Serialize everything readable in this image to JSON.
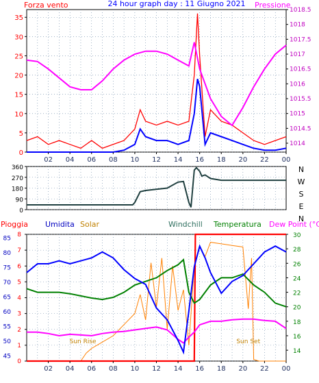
{
  "header": {
    "left_label": "Forza vento",
    "title": "24 hour graph day : 11 Giugno 2021",
    "right_label": "Pressione"
  },
  "bottom_header": {
    "pioggia": "Pioggia",
    "umidita": "Umidita",
    "solar": "Solar",
    "windchill": "Windchill",
    "temperatura": "Temperatura",
    "dewpoint": "Dew Point (°C)"
  },
  "annotations": {
    "sunrise": "Sun Rise",
    "sunset": "Sun Set"
  },
  "colors": {
    "wind": "#ff0000",
    "gust_avg": "#0000ff",
    "pressure": "#ff00ff",
    "direction": "#1f3f3f",
    "rain": "#ff0000",
    "humidity": "#0000ff",
    "solar": "#ff8000",
    "temperature": "#008000",
    "dewpoint": "#ff00ff",
    "pioggia_axis": "#ff0000",
    "umidita_axis": "#0000c0",
    "temp_axis": "#008000"
  },
  "chart_data": [
    {
      "type": "line",
      "name": "wind_pressure",
      "x_ticks": [
        "02",
        "04",
        "06",
        "08",
        "10",
        "12",
        "14",
        "16",
        "18",
        "20",
        "22",
        "00"
      ],
      "y_left_ticks": [
        "35",
        "30",
        "25",
        "20",
        "15",
        "10",
        "5",
        "0"
      ],
      "y_left_lim": [
        0,
        37
      ],
      "y_right_ticks": [
        "1018.5",
        "1018",
        "1017.5",
        "1017",
        "1016.5",
        "1016",
        "1015.5",
        "1015",
        "1014.5",
        "1014"
      ],
      "y_right_lim": [
        1013.7,
        1018.5
      ],
      "xlim": [
        0,
        24
      ],
      "series": [
        {
          "name": "Pressione",
          "x": [
            0,
            1,
            2,
            3,
            4,
            5,
            6,
            7,
            8,
            9,
            10,
            11,
            12,
            13,
            14,
            15,
            15.5,
            16,
            17,
            18,
            19,
            20,
            21,
            22,
            23,
            24
          ],
          "values": [
            1016.8,
            1016.75,
            1016.5,
            1016.2,
            1015.9,
            1015.8,
            1015.8,
            1016.1,
            1016.5,
            1016.8,
            1017.0,
            1017.1,
            1017.1,
            1017.0,
            1016.8,
            1016.6,
            1017.4,
            1016.5,
            1015.5,
            1014.9,
            1014.6,
            1015.2,
            1015.9,
            1016.5,
            1017.0,
            1017.3
          ]
        },
        {
          "name": "wind_avg",
          "x": [
            0,
            2,
            4,
            6,
            8,
            9,
            10,
            10.5,
            11,
            12,
            13,
            14,
            15,
            15.5,
            15.8,
            16,
            16.5,
            17,
            18,
            19,
            20,
            21,
            22,
            23,
            24
          ],
          "values": [
            0,
            0,
            0,
            0,
            0,
            0.5,
            2,
            6,
            4,
            3,
            3,
            2,
            3,
            10,
            19,
            17,
            2,
            5,
            4,
            3,
            2,
            1,
            0.5,
            0.5,
            1
          ]
        },
        {
          "name": "wind_gust",
          "x": [
            0,
            1,
            2,
            3,
            4,
            5,
            6,
            7,
            8,
            9,
            10,
            10.5,
            11,
            12,
            13,
            14,
            15,
            15.5,
            15.8,
            16,
            16.5,
            17,
            18,
            19,
            20,
            21,
            22,
            23,
            24
          ],
          "values": [
            3,
            4,
            2,
            3,
            2,
            1,
            3,
            1,
            2,
            3,
            6,
            11,
            8,
            7,
            8,
            7,
            8,
            20,
            36,
            25,
            4,
            11,
            8,
            7,
            5,
            3,
            2,
            3,
            4
          ]
        }
      ]
    },
    {
      "type": "line",
      "name": "wind_direction",
      "y_ticks": [
        "360",
        "270",
        "180",
        "90",
        "0"
      ],
      "ylim": [
        0,
        360
      ],
      "y_right_ticks": [
        "N",
        "W",
        "S",
        "E",
        "N"
      ],
      "x": [
        0,
        2,
        4,
        6,
        8,
        9.8,
        10,
        10.5,
        11,
        12,
        13,
        14,
        14.5,
        15,
        15.2,
        15.5,
        15.7,
        16,
        16.2,
        16.5,
        17,
        18,
        20,
        22,
        24
      ],
      "values": [
        40,
        40,
        40,
        40,
        40,
        40,
        60,
        150,
        160,
        170,
        180,
        230,
        235,
        60,
        20,
        330,
        350,
        320,
        280,
        290,
        260,
        245,
        245,
        245,
        245
      ]
    },
    {
      "type": "line",
      "name": "rain_humidity_temp",
      "pioggia_ticks": [
        "8",
        "7",
        "6",
        "5",
        "4",
        "3",
        "2",
        "1",
        "0"
      ],
      "pioggia_lim": [
        0,
        8
      ],
      "umidita_ticks": [
        "85",
        "80",
        "75",
        "70",
        "65",
        "60",
        "55",
        "50",
        "45"
      ],
      "umidita_lim": [
        43,
        86
      ],
      "temp_ticks": [
        "30",
        "28",
        "26",
        "24",
        "22",
        "20",
        "18",
        "16",
        "14"
      ],
      "temp_lim": [
        12.5,
        30
      ],
      "series": [
        {
          "name": "Umidita",
          "x": [
            0,
            1,
            2,
            3,
            4,
            5,
            6,
            7,
            8,
            9,
            10,
            11,
            12,
            13,
            14,
            14.5,
            15,
            15.5,
            16,
            16.5,
            17,
            18,
            19,
            20,
            21,
            22,
            23,
            24
          ],
          "values": [
            73,
            76,
            76,
            77,
            76,
            77,
            78,
            80,
            78,
            74,
            71,
            69,
            61,
            57,
            50,
            46,
            60,
            75,
            82,
            78,
            73,
            66,
            70,
            72,
            76,
            80,
            82,
            80
          ]
        },
        {
          "name": "Temperatura",
          "x": [
            0,
            1,
            2,
            3,
            4,
            5,
            6,
            7,
            8,
            9,
            10,
            11,
            12,
            13,
            14,
            14.5,
            15,
            15.5,
            16,
            17,
            18,
            19,
            20,
            21,
            22,
            23,
            24
          ],
          "values": [
            22.5,
            22,
            22,
            22,
            21.8,
            21.5,
            21.2,
            21,
            21.3,
            22,
            23,
            23.5,
            24,
            25,
            25.8,
            26.5,
            22,
            20.5,
            21,
            23,
            24,
            24,
            24.5,
            23,
            22,
            20.5,
            20
          ]
        },
        {
          "name": "Dew Point",
          "x": [
            0,
            1,
            2,
            3,
            4,
            5,
            6,
            7,
            8,
            9,
            10,
            11,
            12,
            13,
            14,
            14.5,
            15,
            15.5,
            16,
            17,
            18,
            19,
            20,
            21,
            22,
            23,
            24
          ],
          "values": [
            16.5,
            16.5,
            16.3,
            16,
            16.2,
            16.1,
            16,
            16.3,
            16.5,
            16.6,
            16.8,
            17,
            17.2,
            16.8,
            15.5,
            15,
            15.8,
            16.5,
            17.5,
            18,
            18,
            18.2,
            18.3,
            18.3,
            18.1,
            18,
            17
          ]
        },
        {
          "name": "Pioggia",
          "x": [
            0,
            15.5,
            15.6,
            24
          ],
          "values": [
            0,
            0,
            8,
            8
          ]
        },
        {
          "name": "Solar",
          "x": [
            0,
            5,
            5.5,
            6,
            7,
            8,
            9,
            10,
            10.5,
            11,
            11.5,
            12,
            12.5,
            13,
            13.5,
            14,
            14.5,
            15,
            15.5,
            16,
            16.5,
            17,
            18,
            19,
            20,
            20.5,
            20.8,
            21,
            21.5,
            22,
            24
          ],
          "values": [
            0,
            0,
            0.5,
            0.8,
            1.2,
            1.6,
            2.3,
            3,
            4.2,
            2.6,
            6.2,
            3.4,
            6.5,
            2,
            6,
            3.2,
            4.5,
            1,
            6,
            7.2,
            6.6,
            7.5,
            7.4,
            7.3,
            7.2,
            3.3,
            6.5,
            0.1,
            0,
            0,
            0
          ]
        }
      ]
    }
  ]
}
